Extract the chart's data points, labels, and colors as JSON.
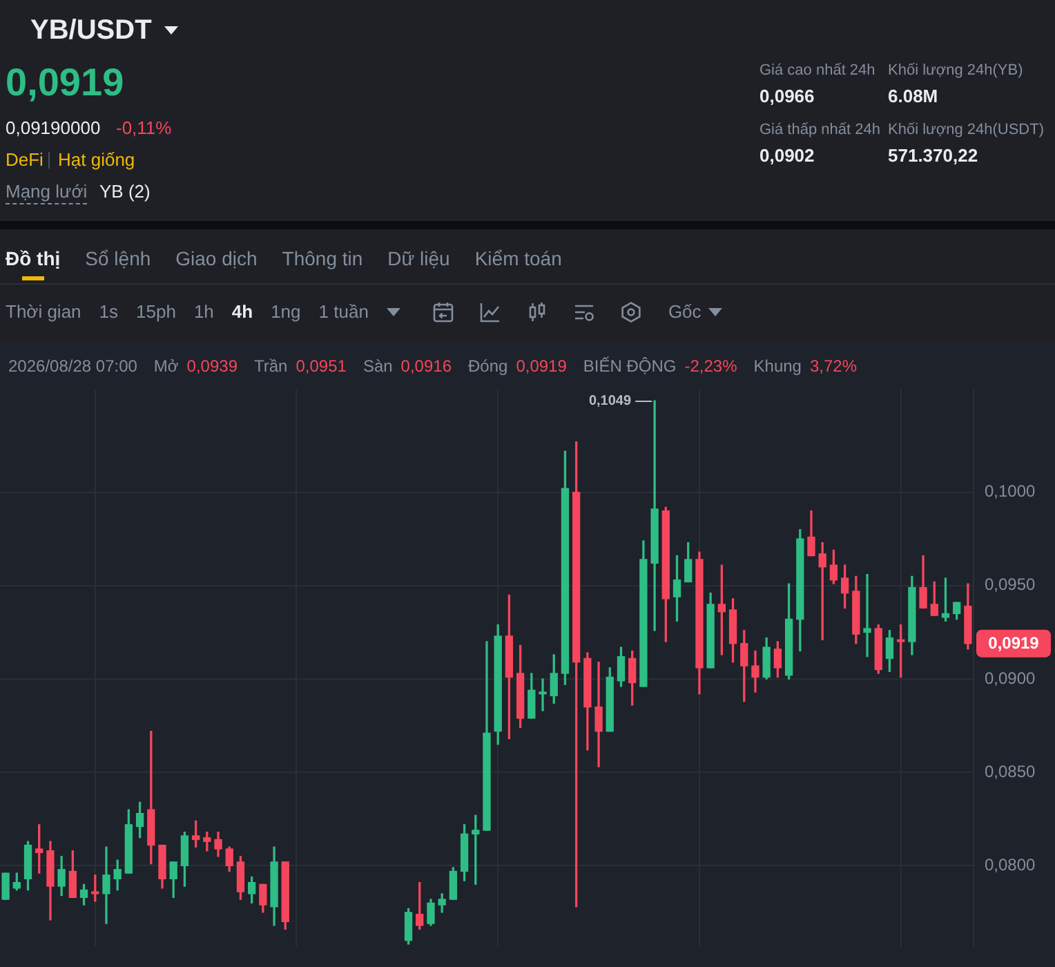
{
  "chart_data": {
    "type": "candlestick",
    "title": "YB/USDT",
    "categories": [
      null,
      null,
      null,
      null,
      null,
      null,
      null,
      null,
      null,
      null,
      null,
      null,
      null,
      null,
      null,
      null,
      null,
      null,
      null,
      null,
      null,
      null,
      null,
      null,
      null,
      null,
      null,
      null,
      null,
      null,
      null,
      null,
      null,
      null,
      null,
      null,
      null,
      null,
      null,
      null,
      null,
      null,
      null,
      null,
      null,
      null,
      null,
      null,
      null,
      null,
      null,
      null,
      null,
      null,
      null,
      null,
      null,
      null,
      null,
      null,
      null,
      null,
      null,
      null,
      null,
      null,
      null,
      null,
      null,
      null,
      null,
      null,
      null,
      null,
      null,
      null,
      null,
      null,
      null,
      null,
      null,
      null,
      null,
      null,
      null,
      null,
      null
    ],
    "ohlc": [
      [
        0.0782,
        0.0796,
        0.0782,
        0.0796
      ],
      [
        0.0788,
        0.0796,
        0.0787,
        0.0791
      ],
      [
        0.0793,
        0.0813,
        0.0787,
        0.0811
      ],
      [
        0.0809,
        0.0822,
        0.0796,
        0.0807
      ],
      [
        0.0808,
        0.0813,
        0.0771,
        0.0789
      ],
      [
        0.0789,
        0.0805,
        0.0784,
        0.0798
      ],
      [
        0.0797,
        0.0808,
        0.0783,
        0.0783
      ],
      [
        0.0783,
        0.079,
        0.0779,
        0.0787
      ],
      [
        0.0786,
        0.0795,
        0.0781,
        0.0785
      ],
      [
        0.0785,
        0.081,
        0.0769,
        0.0795
      ],
      [
        0.0793,
        0.0803,
        0.0787,
        0.0798
      ],
      [
        0.0796,
        0.083,
        0.0796,
        0.0822
      ],
      [
        0.0821,
        0.0834,
        0.0815,
        0.0828
      ],
      [
        0.083,
        0.0872,
        0.0801,
        0.0811
      ],
      [
        0.0811,
        0.0811,
        0.0788,
        0.0793
      ],
      [
        0.0793,
        0.0802,
        0.0783,
        0.0802
      ],
      [
        0.08,
        0.0818,
        0.0789,
        0.0816
      ],
      [
        0.0816,
        0.0824,
        0.081,
        0.0814
      ],
      [
        0.0815,
        0.0818,
        0.0808,
        0.0813
      ],
      [
        0.0814,
        0.0818,
        0.0805,
        0.0809
      ],
      [
        0.0809,
        0.081,
        0.0797,
        0.08
      ],
      [
        0.0802,
        0.0805,
        0.0782,
        0.0786
      ],
      [
        0.0785,
        0.0794,
        0.078,
        0.0791
      ],
      [
        0.079,
        0.079,
        0.0775,
        0.0779
      ],
      [
        0.0778,
        0.081,
        0.0768,
        0.0802
      ],
      [
        0.0802,
        0.0802,
        0.0766,
        0.077
      ],
      null,
      null,
      null,
      null,
      null,
      null,
      null,
      null,
      null,
      null,
      [
        0.076,
        0.0777,
        0.0758,
        0.0775
      ],
      [
        0.0774,
        0.0791,
        0.0766,
        0.0768
      ],
      [
        0.0769,
        0.0782,
        0.0768,
        0.078
      ],
      [
        0.0779,
        0.0785,
        0.0775,
        0.0782
      ],
      [
        0.0782,
        0.0799,
        0.0782,
        0.0797
      ],
      [
        0.0797,
        0.0822,
        0.0792,
        0.0817
      ],
      [
        0.0817,
        0.0827,
        0.079,
        0.0819
      ],
      [
        0.0819,
        0.092,
        0.0819,
        0.0871
      ],
      [
        0.0872,
        0.0929,
        0.0865,
        0.0923
      ],
      [
        0.0923,
        0.0945,
        0.0868,
        0.0901
      ],
      [
        0.0903,
        0.0918,
        0.0874,
        0.0879
      ],
      [
        0.0879,
        0.0903,
        0.0879,
        0.0894
      ],
      [
        0.0892,
        0.09,
        0.0883,
        0.0893
      ],
      [
        0.0891,
        0.0913,
        0.0887,
        0.0903
      ],
      [
        0.0903,
        0.1022,
        0.0897,
        0.1002
      ],
      [
        0.1,
        0.1027,
        0.0778,
        0.0909
      ],
      [
        0.0911,
        0.0914,
        0.0862,
        0.0885
      ],
      [
        0.0885,
        0.0909,
        0.0853,
        0.0872
      ],
      [
        0.0872,
        0.0906,
        0.0872,
        0.0901
      ],
      [
        0.0899,
        0.0917,
        0.0896,
        0.0912
      ],
      [
        0.0911,
        0.0915,
        0.0886,
        0.0898
      ],
      [
        0.0896,
        0.0974,
        0.0896,
        0.0964
      ],
      [
        0.0962,
        0.1049,
        0.0926,
        0.0991
      ],
      [
        0.099,
        0.0992,
        0.092,
        0.0943
      ],
      [
        0.0944,
        0.0966,
        0.0931,
        0.0953
      ],
      [
        0.0952,
        0.0973,
        0.0952,
        0.0964
      ],
      [
        0.0964,
        0.0968,
        0.0892,
        0.0906
      ],
      [
        0.0906,
        0.0946,
        0.0906,
        0.094
      ],
      [
        0.094,
        0.0961,
        0.0913,
        0.0936
      ],
      [
        0.0937,
        0.0943,
        0.0909,
        0.0919
      ],
      [
        0.0919,
        0.0926,
        0.0888,
        0.0907
      ],
      [
        0.0907,
        0.0915,
        0.0893,
        0.0901
      ],
      [
        0.0901,
        0.0922,
        0.09,
        0.0917
      ],
      [
        0.0916,
        0.092,
        0.0901,
        0.0906
      ],
      [
        0.0902,
        0.0951,
        0.09,
        0.0932
      ],
      [
        0.0932,
        0.098,
        0.0915,
        0.0975
      ],
      [
        0.0976,
        0.099,
        0.0966,
        0.0966
      ],
      [
        0.0967,
        0.0973,
        0.0921,
        0.096
      ],
      [
        0.0961,
        0.0969,
        0.0951,
        0.0953
      ],
      [
        0.0954,
        0.0961,
        0.0938,
        0.0946
      ],
      [
        0.0947,
        0.0955,
        0.0919,
        0.0924
      ],
      [
        0.0925,
        0.0956,
        0.0912,
        0.0927
      ],
      [
        0.0927,
        0.0929,
        0.0903,
        0.0905
      ],
      [
        0.0911,
        0.0926,
        0.0904,
        0.0922
      ],
      [
        0.0921,
        0.0929,
        0.0901,
        0.092
      ],
      [
        0.092,
        0.0955,
        0.0913,
        0.0949
      ],
      [
        0.0949,
        0.0966,
        0.0938,
        0.0938
      ],
      [
        0.094,
        0.0952,
        0.0934,
        0.0934
      ],
      [
        0.0933,
        0.0954,
        0.0931,
        0.0935
      ],
      [
        0.0935,
        0.0941,
        0.0932,
        0.0941
      ],
      [
        0.0939,
        0.0951,
        0.0916,
        0.0919
      ]
    ],
    "colors": [
      "#2ebd85",
      "#2ebd85",
      "#2ebd85",
      "#f6465d",
      "#f6465d",
      "#2ebd85",
      "#f6465d",
      "#2ebd85",
      "#f6465d",
      "#2ebd85",
      "#2ebd85",
      "#2ebd85",
      "#2ebd85",
      "#f6465d",
      "#f6465d",
      "#2ebd85",
      "#2ebd85",
      "#f6465d",
      "#f6465d",
      "#f6465d",
      "#f6465d",
      "#f6465d",
      "#2ebd85",
      "#f6465d",
      "#2ebd85",
      "#f6465d",
      null,
      null,
      null,
      null,
      null,
      null,
      null,
      null,
      null,
      null,
      "#2ebd85",
      "#f6465d",
      "#2ebd85",
      "#2ebd85",
      "#2ebd85",
      "#2ebd85",
      "#2ebd85",
      "#2ebd85",
      "#2ebd85",
      "#f6465d",
      "#f6465d",
      "#2ebd85",
      "#2ebd85",
      "#2ebd85",
      "#2ebd85",
      "#f6465d",
      "#f6465d",
      "#f6465d",
      "#2ebd85",
      "#2ebd85",
      "#f6465d",
      "#2ebd85",
      "#2ebd85",
      "#f6465d",
      "#2ebd85",
      "#2ebd85",
      "#f6465d",
      "#2ebd85",
      "#f6465d",
      "#f6465d",
      "#f6465d",
      "#f6465d",
      "#2ebd85",
      "#f6465d",
      "#2ebd85",
      "#2ebd85",
      "#f6465d",
      "#f6465d",
      "#f6465d",
      "#f6465d",
      "#f6465d",
      "#2ebd85",
      "#f6465d",
      "#2ebd85",
      "#f6465d",
      "#2ebd85",
      "#f6465d",
      "#f6465d",
      "#2ebd85",
      "#2ebd85",
      "#f6465d"
    ],
    "ylim": [
      0.0757,
      0.1055
    ],
    "yticks": [
      {
        "value": 0.08,
        "label": "0,0800"
      },
      {
        "value": 0.085,
        "label": "0,0850"
      },
      {
        "value": 0.09,
        "label": "0,0900"
      },
      {
        "value": 0.095,
        "label": "0,0950"
      },
      {
        "value": 0.1,
        "label": "0,1000"
      }
    ],
    "grid": true,
    "tick_labels": "y",
    "annotations": [
      "0,0919",
      "0,09190000",
      "-0,11%",
      "DeFi",
      "Hạt giống",
      "Mạng lưới",
      "YB (2)",
      "Giá cao nhất 24h",
      "0,0966",
      "Khối lượng 24h(YB)",
      "6.08M",
      "Giá thấp nhất 24h",
      "0,0902",
      "Khối lượng 24h(USDT)",
      "571.370,22",
      "Đồ thị",
      "Sổ lệnh",
      "Giao dịch",
      "Thông tin",
      "Dữ liệu",
      "Kiểm toán",
      "Thời gian",
      "1s",
      "15ph",
      "1h",
      "4h",
      "1ng",
      "1 tuần",
      "Gốc",
      "2026/08/28 07:00",
      "Mở",
      "0,0939",
      "Trần",
      "0,0951",
      "Sàn",
      "0,0916",
      "Đóng",
      "0,0919",
      "BIẾN ĐỘNG",
      "-2,23%",
      "Khung",
      "3,72%",
      "0,1049",
      "0,0919"
    ]
  }
}
